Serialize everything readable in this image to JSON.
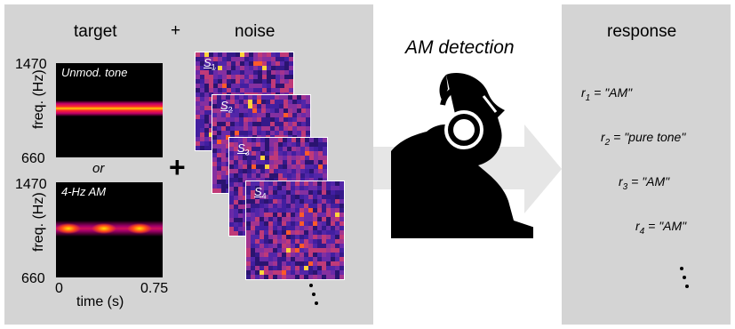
{
  "left_panel": {
    "target_title": "target",
    "plus_top": "+",
    "noise_title": "noise",
    "plus_mid": "+",
    "or_label": "or",
    "unmod_label": "Unmod. tone",
    "am_label": "4-Hz AM",
    "freq_axis_label": "freq. (Hz)",
    "freq_max": "1470",
    "freq_min": "660",
    "time_axis_label": "time (s)",
    "time_min": "0",
    "time_max": "0.75",
    "noise_samples": [
      {
        "sym": "S",
        "sub": "1"
      },
      {
        "sym": "S",
        "sub": "2"
      },
      {
        "sym": "S",
        "sub": "3"
      },
      {
        "sym": "S",
        "sub": "4"
      }
    ]
  },
  "middle": {
    "title": "AM detection",
    "listener_icon": "listener-with-headphones-icon"
  },
  "right_panel": {
    "title": "response",
    "responses": [
      {
        "sym": "r",
        "sub": "1",
        "text": "= \"AM\""
      },
      {
        "sym": "r",
        "sub": "2",
        "text": "= \"pure tone\""
      },
      {
        "sym": "r",
        "sub": "3",
        "text": "= \"AM\""
      },
      {
        "sym": "r",
        "sub": "4",
        "text": "= \"AM\""
      }
    ]
  },
  "colors": {
    "panel": "#d4d4d4",
    "arrow": "#e6e6e6",
    "noise_base": "#3a1d8f",
    "tone_core": "#ffe000",
    "tone_edge": "#d10050"
  }
}
